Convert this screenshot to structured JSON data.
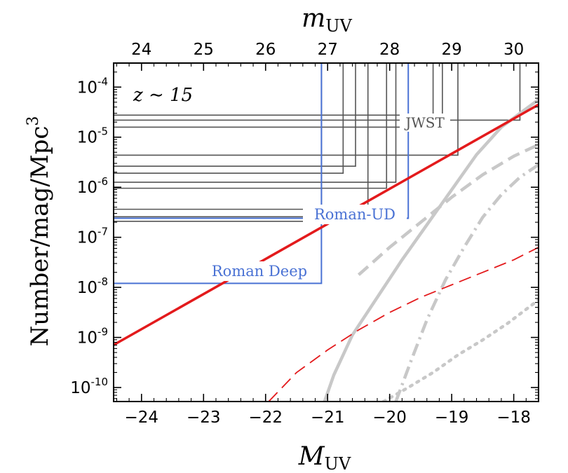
{
  "chart_data": {
    "type": "line",
    "title": "",
    "annotation": "z ∼ 15",
    "xlabel": "M_UV",
    "xlabel_main": "M",
    "xlabel_sub": "UV",
    "x2label": "m_UV",
    "x2label_main": "m",
    "x2label_sub": "UV",
    "ylabel": "Number/mag/Mpc^3",
    "ylabel_main": "Number/mag/Mpc",
    "ylabel_sup": "3",
    "xlim": [
      -24.45,
      -17.6
    ],
    "ylim_log10": [
      -10.28,
      -3.52
    ],
    "x_ticks": [
      -24,
      -23,
      -22,
      -21,
      -20,
      -19,
      -18
    ],
    "x_tick_labels": [
      "−24",
      "−23",
      "−22",
      "−21",
      "−20",
      "−19",
      "−18"
    ],
    "x2_ticks": [
      24,
      25,
      26,
      27,
      28,
      29,
      30
    ],
    "x2_tick_labels": [
      "24",
      "25",
      "26",
      "27",
      "28",
      "29",
      "30"
    ],
    "x2_offset": 48.0,
    "y_ticks_log10": [
      -4,
      -5,
      -6,
      -7,
      -8,
      -9,
      -10
    ],
    "y_tick_base": "10",
    "y_tick_exps": [
      "-4",
      "-5",
      "-6",
      "-7",
      "-8",
      "-9",
      "-10"
    ],
    "colors": {
      "red": "#e31a1c",
      "gray": "#c8c8c8",
      "jwst": "#555555",
      "roman": "#4a72d4"
    },
    "series": [
      {
        "name": "main-lf",
        "style": "solid",
        "color": "red",
        "width": 3.5,
        "points": [
          [
            -24.45,
            -9.15
          ],
          [
            -17.6,
            -4.35
          ]
        ]
      },
      {
        "name": "red-dashed",
        "style": "dashed",
        "color": "red",
        "width": 1.8,
        "points": [
          [
            -21.95,
            -10.28
          ],
          [
            -21.5,
            -9.7
          ],
          [
            -21.0,
            -9.25
          ],
          [
            -20.5,
            -8.85
          ],
          [
            -20.0,
            -8.5
          ],
          [
            -19.5,
            -8.2
          ],
          [
            -19.0,
            -7.95
          ],
          [
            -18.5,
            -7.7
          ],
          [
            -18.0,
            -7.45
          ],
          [
            -17.6,
            -7.2
          ]
        ]
      },
      {
        "name": "gray-solid",
        "style": "solid",
        "color": "gray",
        "width": 4.5,
        "points": [
          [
            -21.05,
            -10.28
          ],
          [
            -20.9,
            -9.75
          ],
          [
            -20.6,
            -8.95
          ],
          [
            -20.2,
            -8.2
          ],
          [
            -19.8,
            -7.45
          ],
          [
            -19.4,
            -6.75
          ],
          [
            -19.0,
            -6.05
          ],
          [
            -18.6,
            -5.35
          ],
          [
            -18.2,
            -4.8
          ],
          [
            -17.6,
            -4.25
          ]
        ]
      },
      {
        "name": "gray-dashed",
        "style": "dashed",
        "color": "gray",
        "width": 4.5,
        "points": [
          [
            -20.5,
            -7.75
          ],
          [
            -20.0,
            -7.2
          ],
          [
            -19.5,
            -6.7
          ],
          [
            -19.0,
            -6.2
          ],
          [
            -18.5,
            -5.75
          ],
          [
            -18.0,
            -5.38
          ],
          [
            -17.6,
            -5.15
          ]
        ]
      },
      {
        "name": "gray-dashdot",
        "style": "dashdot",
        "color": "gray",
        "width": 4.5,
        "points": [
          [
            -19.9,
            -10.28
          ],
          [
            -19.65,
            -9.45
          ],
          [
            -19.4,
            -8.65
          ],
          [
            -19.1,
            -7.85
          ],
          [
            -18.8,
            -7.2
          ],
          [
            -18.5,
            -6.6
          ],
          [
            -18.2,
            -6.15
          ],
          [
            -17.9,
            -5.8
          ],
          [
            -17.6,
            -5.55
          ]
        ]
      },
      {
        "name": "gray-dotted",
        "style": "dotted",
        "color": "gray",
        "width": 4.5,
        "points": [
          [
            -20.1,
            -10.28
          ],
          [
            -19.7,
            -10.0
          ],
          [
            -19.3,
            -9.7
          ],
          [
            -18.9,
            -9.35
          ],
          [
            -18.5,
            -9.05
          ],
          [
            -18.1,
            -8.72
          ],
          [
            -17.6,
            -8.25
          ]
        ]
      }
    ],
    "surveys": {
      "jwst_label": "JWST",
      "roman_ud_label": "Roman-UD",
      "roman_deep_label": "Roman Deep",
      "jwst": [
        {
          "mag": -17.9,
          "logn": -4.66
        },
        {
          "mag": -18.9,
          "logn": -5.36
        },
        {
          "mag": -19.15,
          "logn": -4.56
        },
        {
          "mag": -19.3,
          "logn": -4.8
        },
        {
          "mag": -19.9,
          "logn": -5.9
        },
        {
          "mag": -20.05,
          "logn": -6.02
        },
        {
          "mag": -20.35,
          "logn": -6.68
        },
        {
          "mag": -20.55,
          "logn": -5.58
        },
        {
          "mag": -20.75,
          "logn": -5.72
        },
        {
          "mag": -21.1,
          "logn": -6.44
        },
        {
          "mag": -21.1,
          "logn": -6.59
        }
      ],
      "roman": [
        {
          "mag": -21.1,
          "logn": -7.92,
          "label": "Roman Deep"
        },
        {
          "mag": -19.7,
          "logn": -6.62,
          "label": "Roman-UD"
        }
      ]
    }
  }
}
